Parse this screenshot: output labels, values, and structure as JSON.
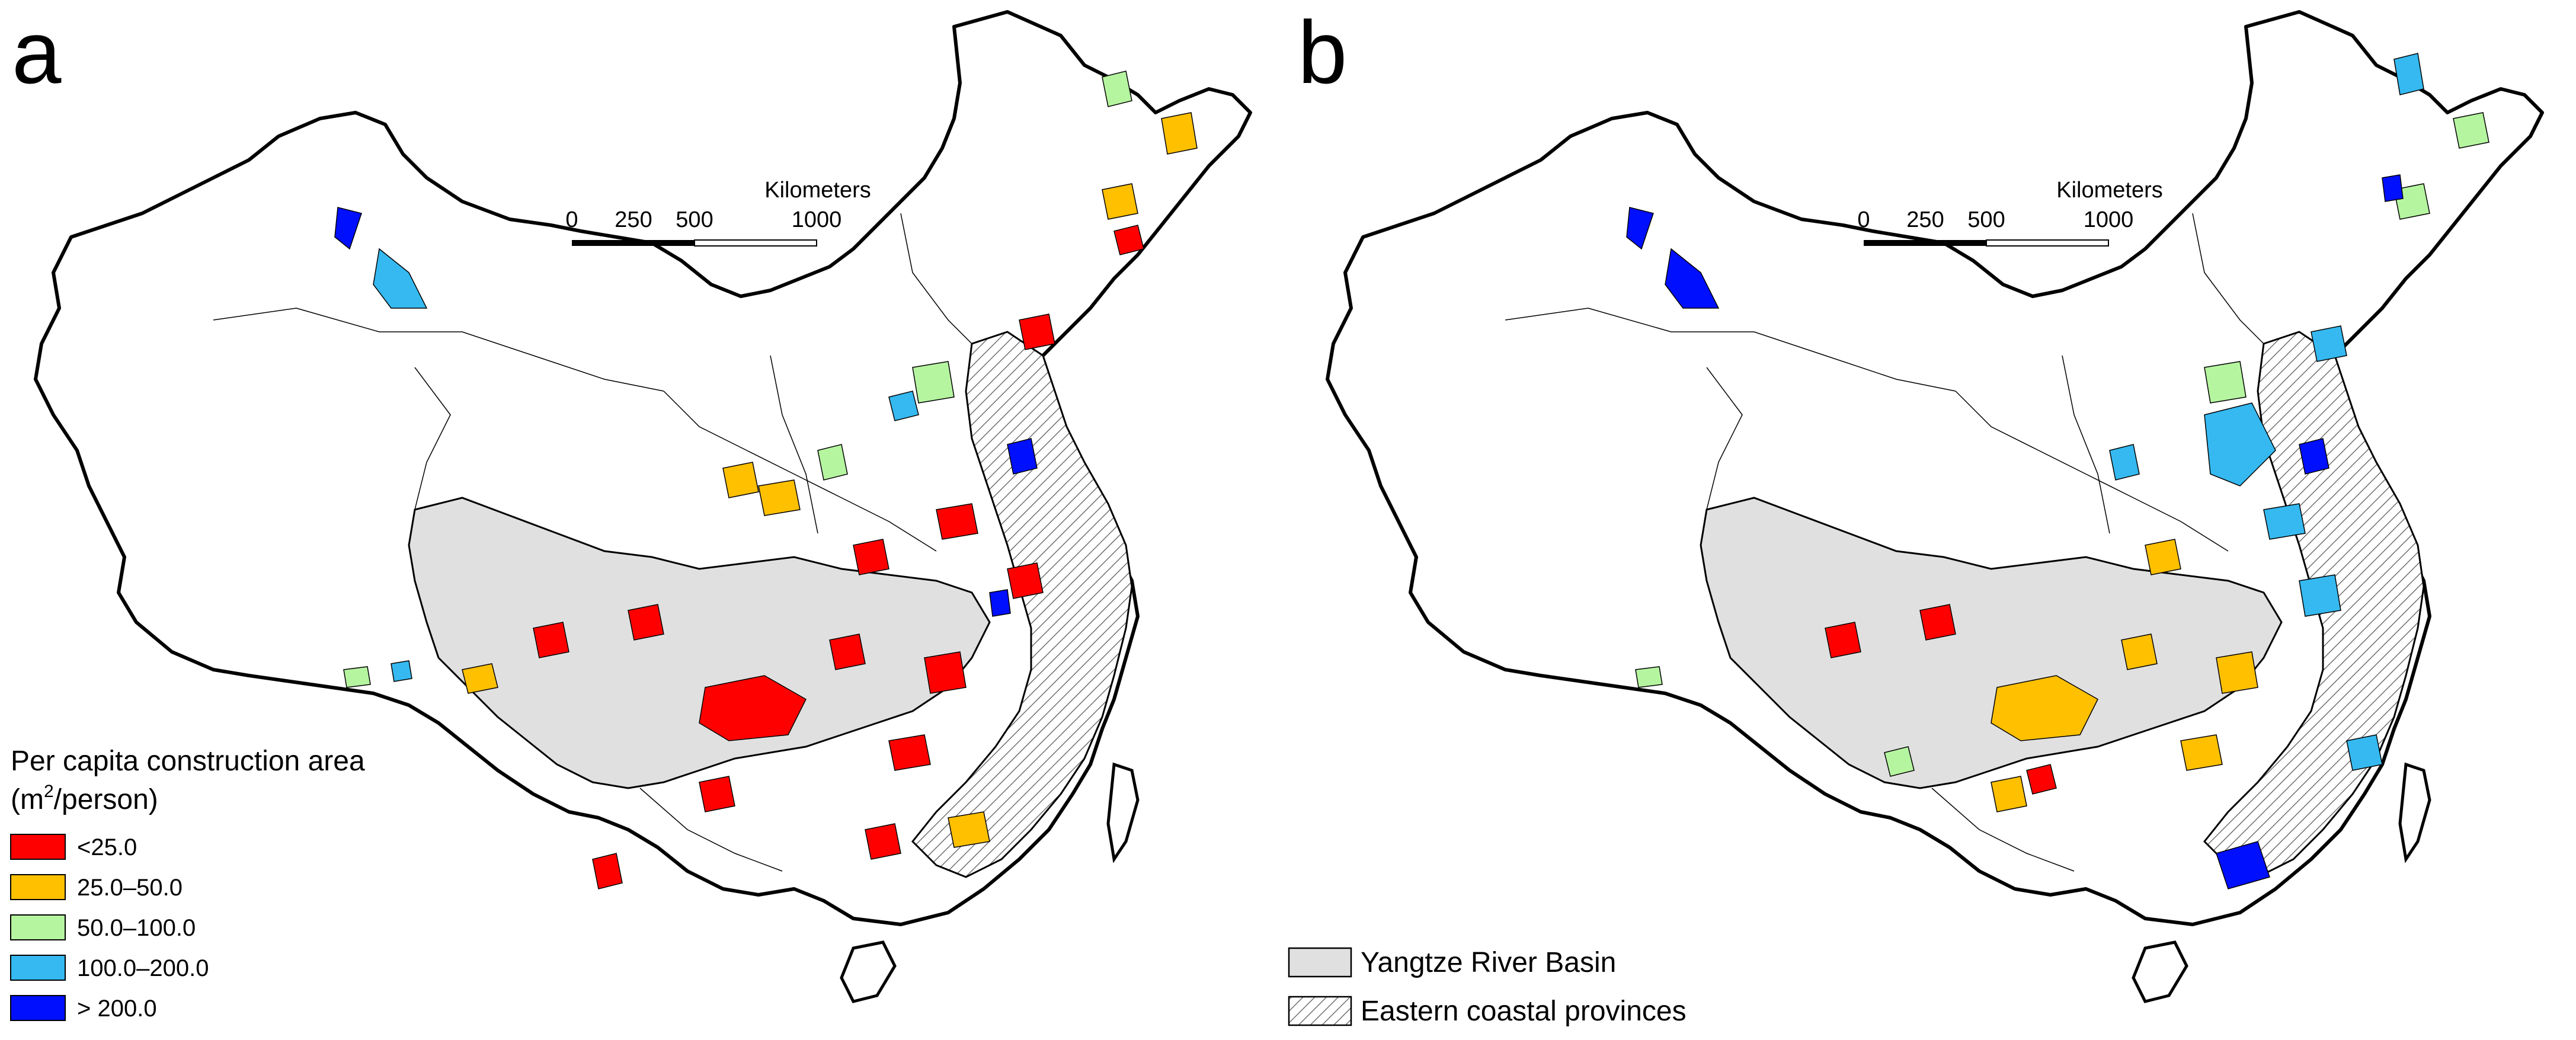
{
  "panels": [
    {
      "label": "a",
      "scale_bar": {
        "title": "Kilometers",
        "ticks": [
          "0",
          "250",
          "500",
          "1000"
        ]
      }
    },
    {
      "label": "b",
      "scale_bar": {
        "title": "Kilometers",
        "ticks": [
          "0",
          "250",
          "500",
          "1000"
        ]
      }
    }
  ],
  "legend_density": {
    "title_line1": "Per capita construction area",
    "title_unit_base": "(m",
    "title_unit_sup": "2",
    "title_unit_rest": "/person)",
    "classes": [
      {
        "label": "<25.0",
        "color": "#ff0000"
      },
      {
        "label": "25.0–50.0",
        "color": "#ffc000"
      },
      {
        "label": "50.0–100.0",
        "color": "#b5f5a0"
      },
      {
        "label": "100.0–200.0",
        "color": "#35b9f0"
      },
      {
        "label": "> 200.0",
        "color": "#0010ff"
      }
    ]
  },
  "legend_regions": [
    {
      "label": "Yangtze River Basin",
      "fill": "#e0e0e0",
      "pattern": "solid"
    },
    {
      "label": "Eastern coastal provinces",
      "fill": "#ffffff",
      "pattern": "hatch"
    }
  ]
}
